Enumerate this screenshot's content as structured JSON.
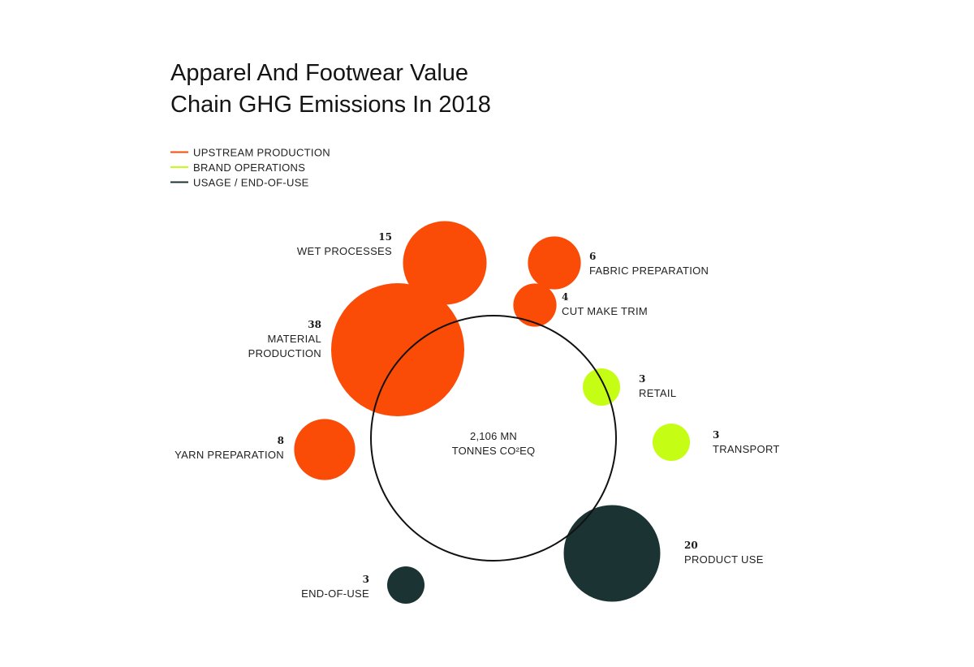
{
  "chart_data": {
    "type": "bubble",
    "title_lines": [
      "Apparel And Footwear Value",
      "Chain GHG Emissions In 2018"
    ],
    "center_label": [
      "2,106 MN",
      "TONNES CO²EQ"
    ],
    "legend": [
      {
        "key": "upstream",
        "label": "UPSTREAM PRODUCTION",
        "color": "#fa4b07"
      },
      {
        "key": "brand",
        "label": "BRAND OPERATIONS",
        "color": "#c6fd15"
      },
      {
        "key": "usage",
        "label": "USAGE / END-OF-USE",
        "color": "#1b3333"
      }
    ],
    "items": [
      {
        "id": "wet-processes",
        "value": 15,
        "value_label": "15",
        "label_lines": [
          "WET PROCESSES"
        ],
        "group": "upstream"
      },
      {
        "id": "fabric-preparation",
        "value": 6,
        "value_label": "6",
        "label_lines": [
          "FABRIC PREPARATION"
        ],
        "group": "upstream"
      },
      {
        "id": "cut-make-trim",
        "value": 4,
        "value_label": "4",
        "label_lines": [
          "CUT MAKE TRIM"
        ],
        "group": "upstream"
      },
      {
        "id": "material-production",
        "value": 38,
        "value_label": "38",
        "label_lines": [
          "MATERIAL",
          "PRODUCTION"
        ],
        "group": "upstream"
      },
      {
        "id": "yarn-preparation",
        "value": 8,
        "value_label": "8",
        "label_lines": [
          "YARN PREPARATION"
        ],
        "group": "upstream"
      },
      {
        "id": "retail",
        "value": 3,
        "value_label": "3",
        "label_lines": [
          "RETAIL"
        ],
        "group": "brand"
      },
      {
        "id": "transport",
        "value": 3,
        "value_label": "3",
        "label_lines": [
          "TRANSPORT"
        ],
        "group": "brand"
      },
      {
        "id": "product-use",
        "value": 20,
        "value_label": "20",
        "label_lines": [
          "PRODUCT USE"
        ],
        "group": "usage"
      },
      {
        "id": "end-of-use",
        "value": 3,
        "value_label": "3",
        "label_lines": [
          "END-OF-USE"
        ],
        "group": "usage"
      }
    ]
  }
}
